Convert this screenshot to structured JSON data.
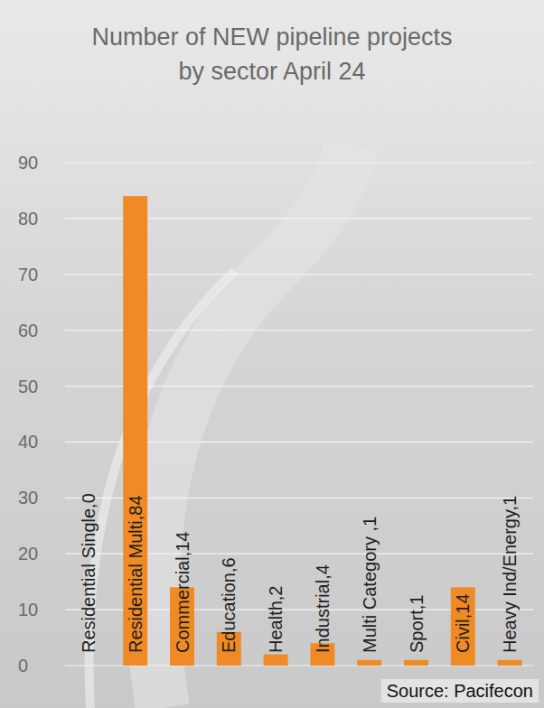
{
  "chart_data": {
    "type": "bar",
    "title": "Number of NEW pipeline projects by sector April 24",
    "categories": [
      "Residential Single,0",
      "Residential Multi,84",
      "Commercial,14",
      "Education,6",
      "Health,2",
      "Industrial,4",
      "Multi Category ,1",
      "Sport,1",
      "Civil,14",
      "Heavy Ind/Energy,1"
    ],
    "values": [
      0,
      84,
      14,
      6,
      2,
      4,
      1,
      1,
      14,
      1
    ],
    "color": "#f08a24",
    "ylim": [
      0,
      90
    ],
    "yticks": [
      0,
      10,
      20,
      30,
      40,
      50,
      60,
      70,
      80,
      90
    ],
    "grid": true,
    "source": "Source: Pacifecon"
  }
}
